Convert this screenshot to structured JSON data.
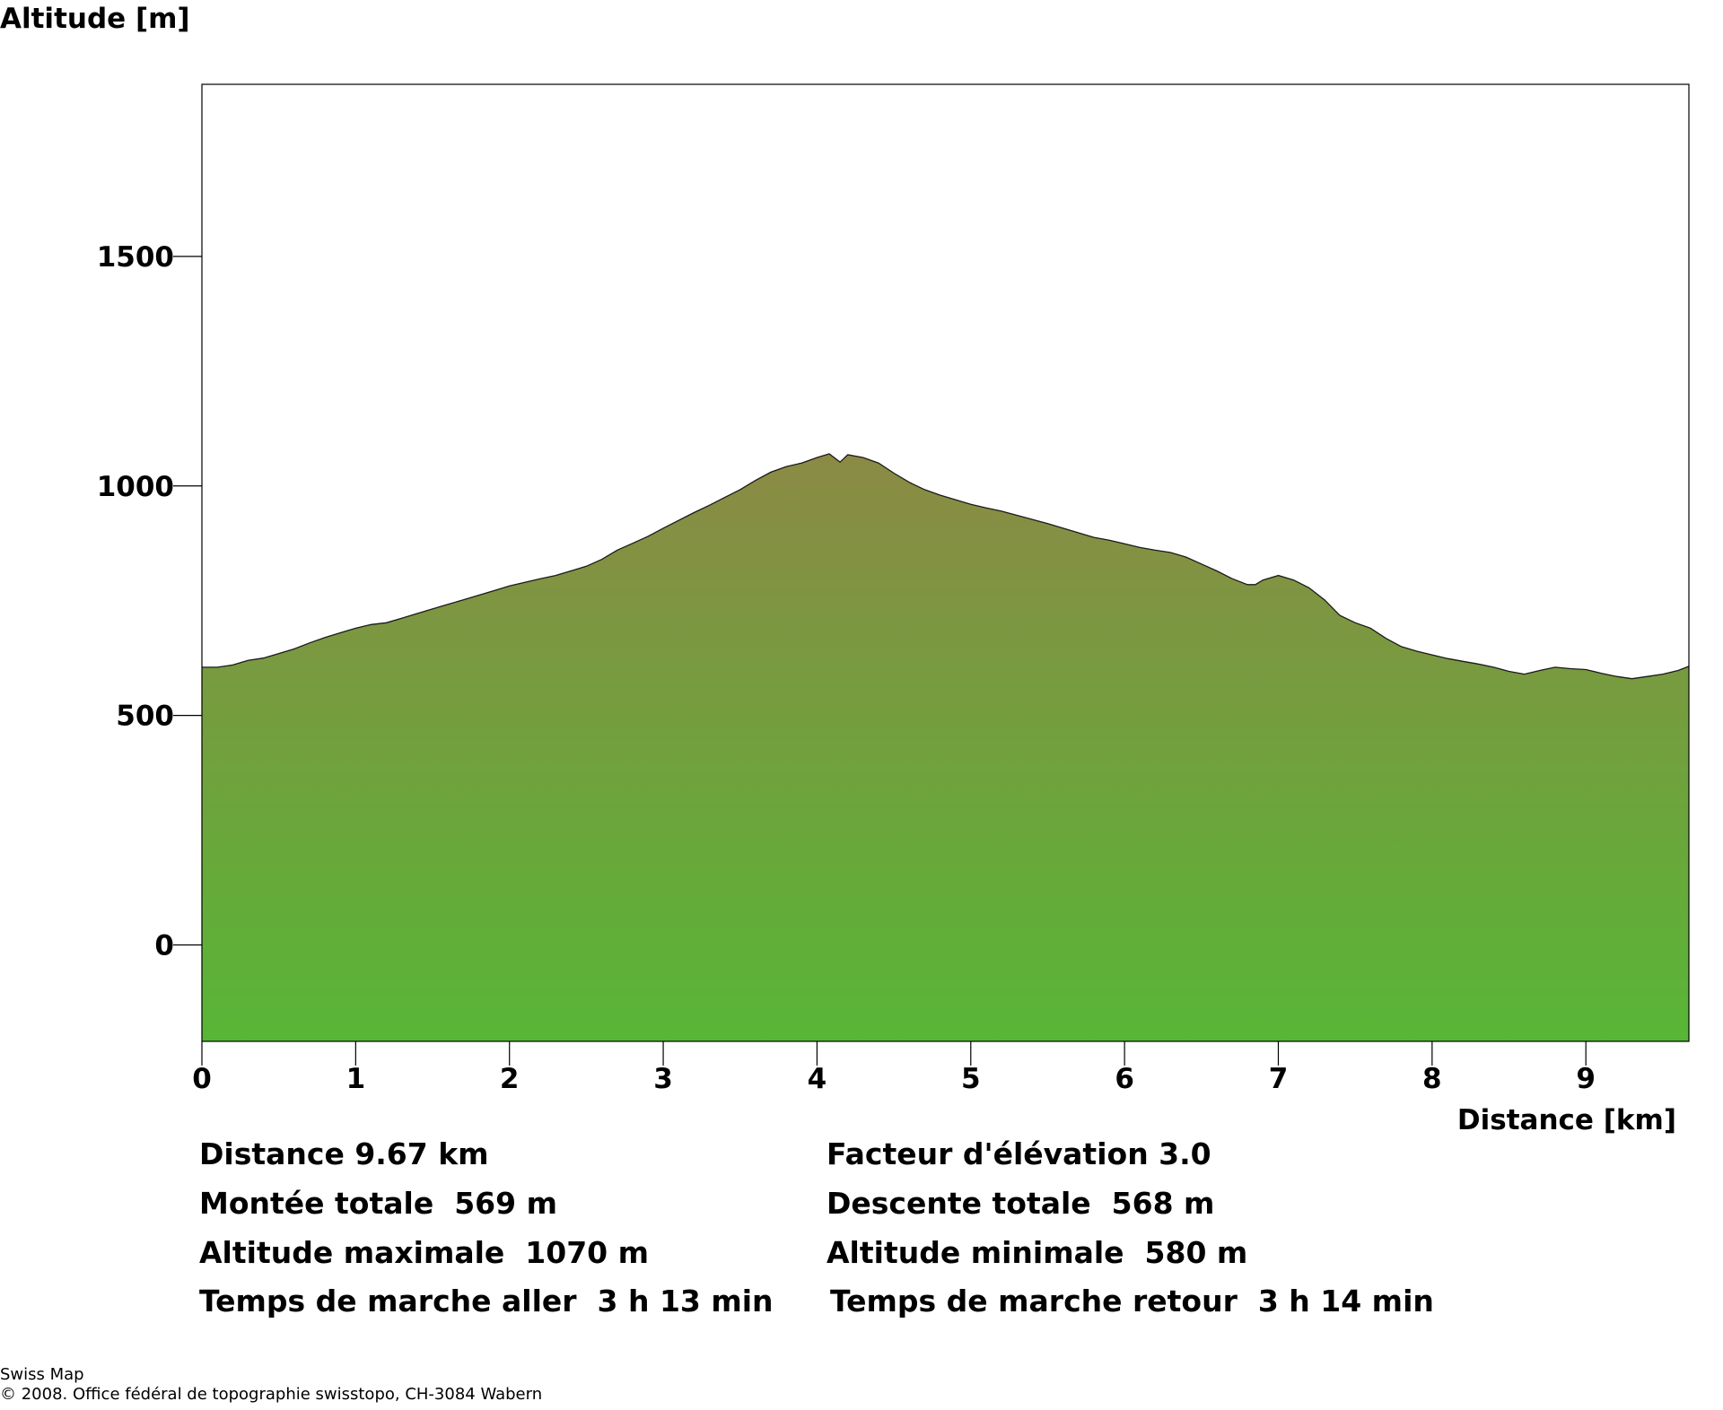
{
  "chart_data": {
    "type": "area",
    "ylabel": "Altitude [m]",
    "xlabel": "Distance [km]",
    "xlim": [
      0,
      9.67
    ],
    "ylim": [
      -210,
      1875
    ],
    "x_ticks": [
      0,
      1,
      2,
      3,
      4,
      5,
      6,
      7,
      8,
      9
    ],
    "y_ticks": [
      0,
      500,
      1000,
      1500
    ],
    "grid": false,
    "fill_colors": {
      "top": "#8b8a45",
      "bottom": "#58b636"
    },
    "series": [
      {
        "x": [
          0,
          0.1,
          0.2,
          0.3,
          0.4,
          0.5,
          0.6,
          0.7,
          0.8,
          0.9,
          1.0,
          1.1,
          1.2,
          1.3,
          1.4,
          1.5,
          1.6,
          1.7,
          1.8,
          1.9,
          2.0,
          2.1,
          2.2,
          2.3,
          2.4,
          2.5,
          2.6,
          2.7,
          2.8,
          2.9,
          3.0,
          3.1,
          3.2,
          3.3,
          3.4,
          3.5,
          3.6,
          3.7,
          3.8,
          3.9,
          4.0,
          4.08,
          4.15,
          4.2,
          4.3,
          4.4,
          4.5,
          4.6,
          4.7,
          4.8,
          4.9,
          5.0,
          5.1,
          5.2,
          5.3,
          5.4,
          5.5,
          5.6,
          5.7,
          5.8,
          5.9,
          6.0,
          6.1,
          6.2,
          6.3,
          6.4,
          6.5,
          6.6,
          6.7,
          6.8,
          6.85,
          6.9,
          7.0,
          7.1,
          7.2,
          7.3,
          7.4,
          7.5,
          7.6,
          7.7,
          7.8,
          7.9,
          8.0,
          8.1,
          8.2,
          8.3,
          8.4,
          8.5,
          8.6,
          8.7,
          8.8,
          8.9,
          9.0,
          9.1,
          9.2,
          9.3,
          9.4,
          9.5,
          9.6,
          9.67
        ],
        "y": [
          605,
          605,
          610,
          620,
          625,
          635,
          645,
          658,
          670,
          680,
          690,
          698,
          702,
          712,
          722,
          732,
          742,
          752,
          762,
          772,
          782,
          790,
          798,
          805,
          815,
          825,
          840,
          860,
          875,
          890,
          908,
          925,
          942,
          958,
          975,
          992,
          1012,
          1030,
          1042,
          1050,
          1062,
          1070,
          1052,
          1068,
          1062,
          1050,
          1028,
          1008,
          992,
          980,
          970,
          960,
          952,
          945,
          936,
          927,
          918,
          908,
          898,
          888,
          882,
          874,
          866,
          860,
          855,
          845,
          830,
          815,
          798,
          785,
          785,
          795,
          805,
          795,
          778,
          752,
          718,
          702,
          690,
          668,
          650,
          640,
          632,
          624,
          618,
          612,
          605,
          596,
          590,
          598,
          605,
          602,
          600,
          592,
          585,
          580,
          585,
          590,
          598,
          607
        ]
      }
    ]
  },
  "stats": {
    "distance": "Distance 9.67 km",
    "elevation_factor": "Facteur d'élévation 3.0",
    "total_ascent": "Montée totale  569 m",
    "total_descent": "Descente totale  568 m",
    "max_altitude": "Altitude maximale  1070 m",
    "min_altitude": "Altitude minimale  580 m",
    "walk_time_out": "Temps de marche aller  3 h 13 min",
    "walk_time_back": "Temps de marche retour  3 h 14 min"
  },
  "footer": {
    "source": "Swiss Map",
    "copyright": "© 2008. Office fédéral de topographie swisstopo, CH-3084 Wabern"
  }
}
